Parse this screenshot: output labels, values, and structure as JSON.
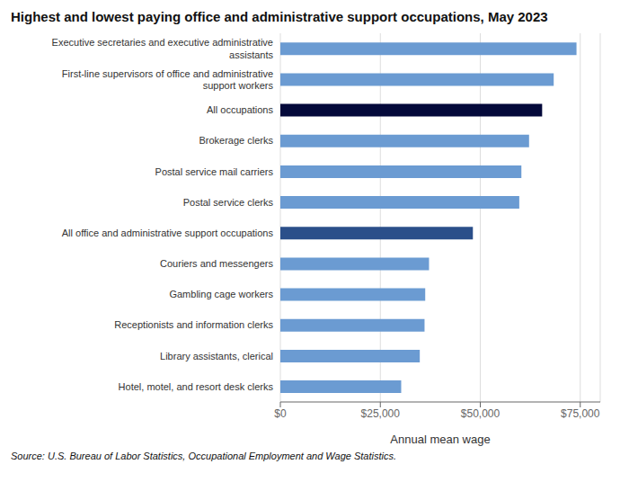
{
  "chart_data": {
    "type": "bar",
    "orientation": "horizontal",
    "title": "Highest and lowest paying office and administrative support occupations, May 2023",
    "categories": [
      "Executive secretaries and executive administrative\nassistants",
      "First-line supervisors of office and administrative\nsupport workers",
      "All occupations",
      "Brokerage clerks",
      "Postal service mail carriers",
      "Postal service clerks",
      "All office and administrative support occupations",
      "Couriers and messengers",
      "Gambling cage workers",
      "Receptionists and information clerks",
      "Library assistants, clerical",
      "Hotel, motel, and resort desk clerks"
    ],
    "values": [
      74060,
      68360,
      65470,
      62200,
      60280,
      59750,
      48150,
      37180,
      36230,
      36060,
      34870,
      30220
    ],
    "colors": [
      "#6B9BD2",
      "#6B9BD2",
      "#04093A",
      "#6B9BD2",
      "#6B9BD2",
      "#6B9BD2",
      "#2B4F8A",
      "#6B9BD2",
      "#6B9BD2",
      "#6B9BD2",
      "#6B9BD2",
      "#6B9BD2"
    ],
    "xlabel": "Annual mean wage",
    "xlim": [
      0,
      80000
    ],
    "xticks": [
      {
        "value": 0,
        "label": "$0"
      },
      {
        "value": 25000,
        "label": "$25,000"
      },
      {
        "value": 50000,
        "label": "$50,000"
      },
      {
        "value": 75000,
        "label": "$75,000"
      }
    ],
    "grid": true,
    "annotations": [
      "Source: U.S. Bureau of Labor Statistics, Occupational Employment and Wage Statistics."
    ]
  }
}
